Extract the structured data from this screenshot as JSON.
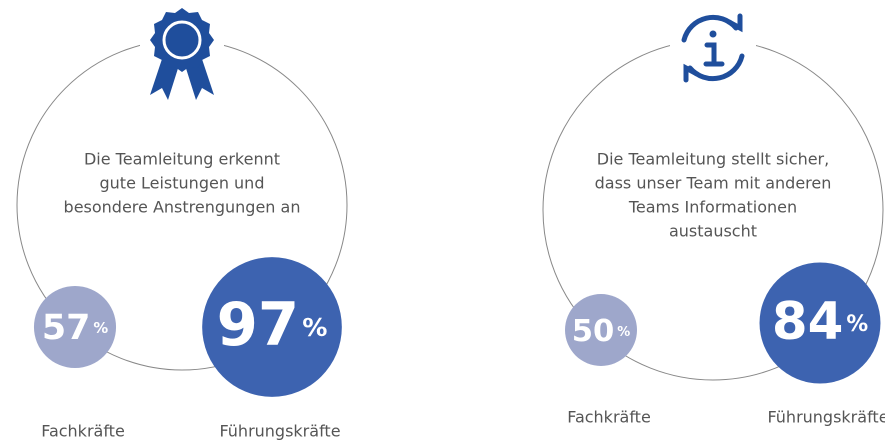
{
  "panels": [
    {
      "statement": [
        "Die Teamleitung erkennt",
        "gute Leistungen und",
        "besondere Anstrengungen an"
      ],
      "groups": [
        {
          "label": "Fachkräfte",
          "value": 57,
          "unit": "%"
        },
        {
          "label": "Führungskräfte",
          "value": 97,
          "unit": "%"
        }
      ]
    },
    {
      "statement": [
        "Die Teamleitung stellt sicher,",
        "dass unser Team mit anderen",
        "Teams Informationen",
        "austauscht"
      ],
      "groups": [
        {
          "label": "Fachkräfte",
          "value": 50,
          "unit": "%"
        },
        {
          "label": "Führungskräfte",
          "value": 84,
          "unit": "%"
        }
      ]
    }
  ]
}
